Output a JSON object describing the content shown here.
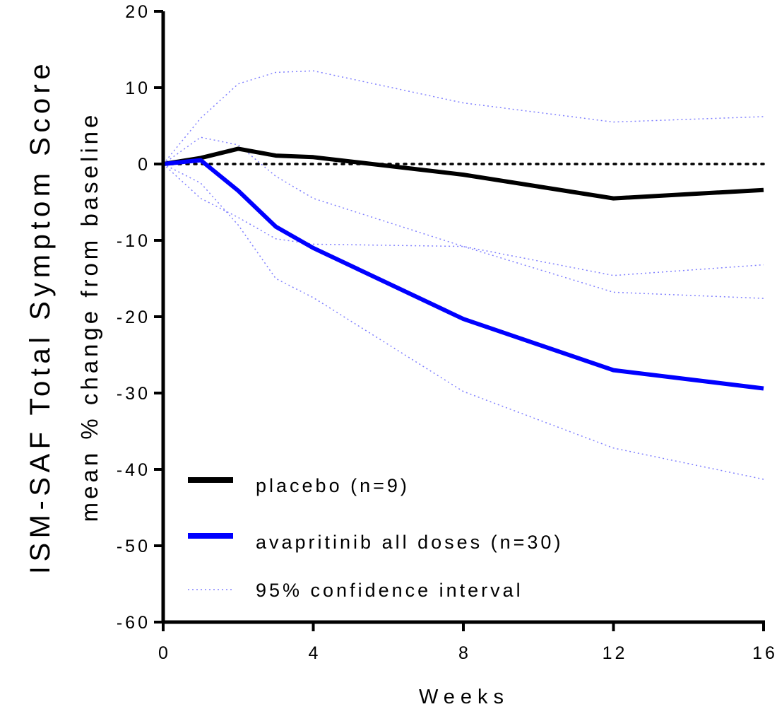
{
  "chart_data": {
    "type": "line",
    "title": "",
    "xlabel": "Weeks",
    "ylabel_line1": "ISM-SAF Total Symptom Score",
    "ylabel_line2": "mean % change from baseline",
    "xlim": [
      0,
      16
    ],
    "ylim": [
      -60,
      20
    ],
    "x_ticks": [
      0,
      4,
      8,
      12,
      16
    ],
    "x_tick_labels": [
      "0",
      "4",
      "8",
      "12",
      "16"
    ],
    "y_ticks": [
      20,
      10,
      0,
      -10,
      -20,
      -30,
      -40,
      -50,
      -60
    ],
    "y_tick_labels": [
      "20",
      "10",
      "0",
      "-10",
      "-20",
      "-30",
      "-40",
      "-50",
      "-60"
    ],
    "grid": false,
    "legend_position": "bottom-left",
    "reference_line": {
      "y": 0,
      "style": "dotted",
      "color": "#000000"
    },
    "series": [
      {
        "name": "placebo (n=9)",
        "color": "#000000",
        "style": "solid",
        "x": [
          0,
          1,
          2,
          3,
          4,
          8,
          12,
          16
        ],
        "y": [
          0,
          0.8,
          2.0,
          1.1,
          0.9,
          -1.4,
          -4.5,
          -3.4
        ]
      },
      {
        "name": "avapritinib all doses (n=30)",
        "color": "#0000ff",
        "style": "solid",
        "x": [
          0,
          1,
          2,
          3,
          4,
          8,
          12,
          16
        ],
        "y": [
          0,
          0.5,
          -3.5,
          -8.2,
          -11.0,
          -20.3,
          -27.0,
          -29.4
        ]
      }
    ],
    "ci_legend_label": "95% confidence interval",
    "ci_color": "#8080ff",
    "confidence_bands": [
      {
        "series": "placebo (n=9)",
        "x": [
          0,
          1,
          2,
          3,
          4,
          8,
          12,
          16
        ],
        "upper": [
          0,
          6.0,
          10.5,
          12.0,
          12.2,
          8.0,
          5.5,
          6.2
        ],
        "lower": [
          0,
          -4.5,
          -7.0,
          -9.8,
          -10.5,
          -10.8,
          -14.6,
          -13.2
        ]
      },
      {
        "series": "avapritinib all doses (n=30)",
        "x": [
          0,
          1,
          2,
          3,
          4,
          8,
          12,
          16
        ],
        "upper": [
          0,
          3.5,
          2.5,
          -1.6,
          -4.5,
          -10.8,
          -16.8,
          -17.6
        ],
        "lower": [
          0,
          -2.5,
          -8.0,
          -15.0,
          -17.5,
          -29.8,
          -37.2,
          -41.3
        ]
      }
    ]
  }
}
